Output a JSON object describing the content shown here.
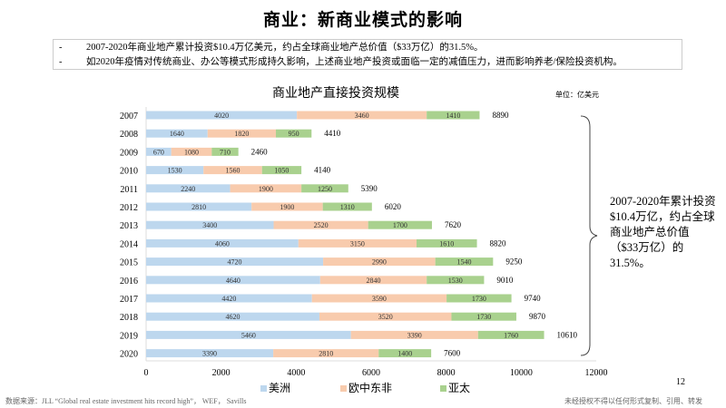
{
  "title": "商业：新商业模式的影响",
  "notes": [
    "2007-2020年商业地产累计投资$10.4万亿美元，约占全球商业地产总价值（$33万亿）的31.5%。",
    "如2020年疫情对传统商业、办公等模式形成持久影响，上述商业地产投资或面临一定的减值压力，进而影响养老/保险投资机构。"
  ],
  "bullet": "-",
  "summary": "2007-2020年累计投资$10.4万亿，约占全球商业地产总价值（$33万亿）的31.5%。",
  "page_number": "12",
  "source": "数据来源：JLL “Global real estate investment hits record high”， WEF， Savills",
  "disclaimer": "未经授权不得以任何形式复制、引用、转发",
  "chart_data": {
    "type": "bar",
    "orientation": "horizontal",
    "stacked": true,
    "title": "商业地产直接投资规模",
    "unit": "单位：亿美元",
    "categories": [
      "2007",
      "2008",
      "2009",
      "2010",
      "2011",
      "2012",
      "2013",
      "2014",
      "2015",
      "2016",
      "2017",
      "2018",
      "2019",
      "2020"
    ],
    "series": [
      {
        "name": "美洲",
        "color": "#bdd7ee",
        "values": [
          4020,
          1640,
          670,
          1530,
          2240,
          2810,
          3400,
          4060,
          4720,
          4640,
          4420,
          4620,
          5460,
          3390
        ]
      },
      {
        "name": "欧中东非",
        "color": "#f8cbad",
        "values": [
          3460,
          1820,
          1080,
          1560,
          1900,
          1900,
          2520,
          3150,
          2990,
          2840,
          3590,
          3520,
          3390,
          2810
        ]
      },
      {
        "name": "亚太",
        "color": "#a9d18e",
        "values": [
          1410,
          950,
          710,
          1050,
          1250,
          1310,
          1700,
          1610,
          1540,
          1530,
          1730,
          1730,
          1760,
          1400
        ]
      }
    ],
    "totals": [
      8890,
      4410,
      2460,
      4140,
      5390,
      6020,
      7620,
      8820,
      9250,
      9010,
      9740,
      9870,
      10610,
      7600
    ],
    "xlim": [
      0,
      12000
    ],
    "xticks": [
      "0",
      "2000",
      "4000",
      "6000",
      "8000",
      "10000",
      "12000"
    ],
    "grid": false,
    "legend": "bottom"
  }
}
